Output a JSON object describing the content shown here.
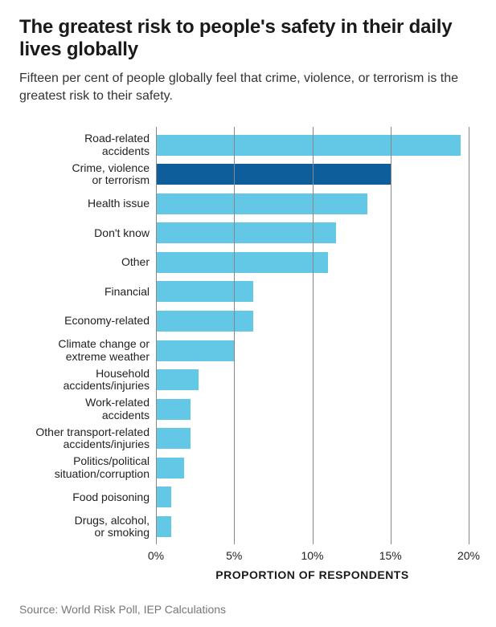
{
  "title": "The greatest risk to people's safety in their daily lives globally",
  "subtitle": "Fifteen per cent of people globally feel that crime, violence, or terrorism is the greatest risk to their safety.",
  "source": "Source: World Risk Poll, IEP Calculations",
  "chart": {
    "type": "bar",
    "orientation": "horizontal",
    "xaxis_title": "PROPORTION OF RESPONDENTS",
    "xlim": [
      0,
      20
    ],
    "xtick_step": 5,
    "xtick_suffix": "%",
    "grid_color": "#888888",
    "background_color": "#ffffff",
    "bar_default_color": "#63c7e6",
    "bar_highlight_color": "#0f5e9c",
    "label_fontsize": 14,
    "tick_fontsize": 14,
    "bars": [
      {
        "label": "Road-related\naccidents",
        "value": 19.5,
        "highlight": false
      },
      {
        "label": "Crime, violence\nor terrorism",
        "value": 15.0,
        "highlight": true
      },
      {
        "label": "Health issue",
        "value": 13.5,
        "highlight": false
      },
      {
        "label": "Don't know",
        "value": 11.5,
        "highlight": false
      },
      {
        "label": "Other",
        "value": 11.0,
        "highlight": false
      },
      {
        "label": "Financial",
        "value": 6.2,
        "highlight": false
      },
      {
        "label": "Economy-related",
        "value": 6.2,
        "highlight": false
      },
      {
        "label": "Climate change or\nextreme weather",
        "value": 5.0,
        "highlight": false
      },
      {
        "label": "Household\naccidents/injuries",
        "value": 2.7,
        "highlight": false
      },
      {
        "label": "Work-related\naccidents",
        "value": 2.2,
        "highlight": false
      },
      {
        "label": "Other transport-related\naccidents/injuries",
        "value": 2.2,
        "highlight": false
      },
      {
        "label": "Politics/political\nsituation/corruption",
        "value": 1.8,
        "highlight": false
      },
      {
        "label": "Food poisoning",
        "value": 1.0,
        "highlight": false
      },
      {
        "label": "Drugs, alcohol,\nor smoking",
        "value": 1.0,
        "highlight": false
      }
    ]
  }
}
